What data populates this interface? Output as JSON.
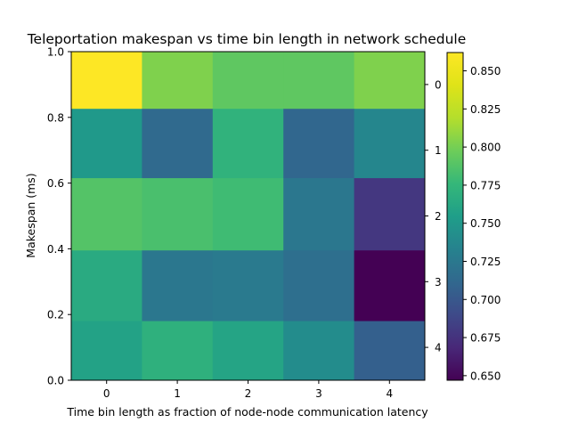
{
  "chart_data": {
    "type": "heatmap",
    "title": "Teleportation makespan vs time bin length in network schedule",
    "xlabel": "Time bin length as fraction of node-node communication latency",
    "ylabel": "Makespan (ms)",
    "x_ticks": [
      "0",
      "1",
      "2",
      "3",
      "4"
    ],
    "y_left_ticks": [
      "0.0",
      "0.2",
      "0.4",
      "0.6",
      "0.8",
      "1.0"
    ],
    "y_left_lim": [
      0.0,
      1.0
    ],
    "y_right_ticks": [
      "0",
      "1",
      "2",
      "3",
      "4"
    ],
    "rows": [
      [
        0.862,
        0.803,
        0.792,
        0.792,
        0.803
      ],
      [
        0.751,
        0.713,
        0.772,
        0.711,
        0.736
      ],
      [
        0.788,
        0.784,
        0.78,
        0.724,
        0.678
      ],
      [
        0.765,
        0.724,
        0.726,
        0.717,
        0.647
      ],
      [
        0.758,
        0.77,
        0.76,
        0.741,
        0.706
      ]
    ],
    "row_edges": [
      1.0,
      0.826,
      0.615,
      0.395,
      0.18,
      0.0
    ],
    "colorbar": {
      "min": 0.647,
      "max": 0.862,
      "ticks": [
        "0.650",
        "0.675",
        "0.700",
        "0.725",
        "0.750",
        "0.775",
        "0.800",
        "0.825",
        "0.850"
      ],
      "colormap": "viridis"
    }
  }
}
